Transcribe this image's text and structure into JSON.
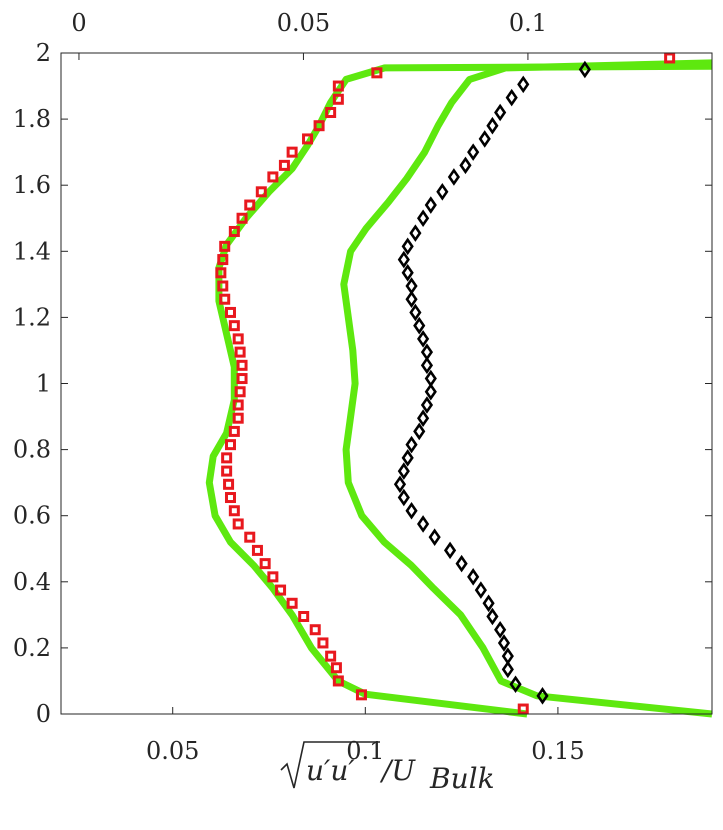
{
  "chart_data": {
    "type": "scatter",
    "title": "",
    "xlabel": "√(u′u′)/U_Bulk",
    "xlabel_parts": {
      "main": "u′u′",
      "tail": "/U",
      "sub": "Bulk"
    },
    "ylabel": "",
    "xlim": [
      0.021,
      0.19
    ],
    "ylim": [
      0,
      2
    ],
    "x_ticks": [
      0.05,
      0.1,
      0.15
    ],
    "x_tick_labels": [
      "0.05",
      "0.1",
      "0.15"
    ],
    "x_top_lim": [
      -0.004,
      0.141
    ],
    "x_top_ticks": [
      0,
      0.05,
      0.1
    ],
    "x_top_tick_labels": [
      "0",
      "0.05",
      "0.1"
    ],
    "y_ticks": [
      0,
      0.2,
      0.4,
      0.6,
      0.8,
      1,
      1.2,
      1.4,
      1.6,
      1.8,
      2
    ],
    "y_tick_labels": [
      "0",
      "0.2",
      "0.4",
      "0.6",
      "0.8",
      "1",
      "1.2",
      "1.4",
      "1.6",
      "1.8",
      "2"
    ],
    "grid": false,
    "lines": [
      {
        "axis": "bottom",
        "color": "#5ee80f",
        "points": [
          [
            0.142,
            0.0
          ],
          [
            0.1,
            0.06
          ],
          [
            0.093,
            0.1
          ],
          [
            0.086,
            0.2
          ],
          [
            0.081,
            0.3
          ],
          [
            0.076,
            0.38
          ],
          [
            0.071,
            0.45
          ],
          [
            0.065,
            0.52
          ],
          [
            0.061,
            0.6
          ],
          [
            0.0595,
            0.7
          ],
          [
            0.0605,
            0.78
          ],
          [
            0.064,
            0.85
          ],
          [
            0.066,
            0.95
          ],
          [
            0.066,
            1.05
          ],
          [
            0.064,
            1.15
          ],
          [
            0.062,
            1.25
          ],
          [
            0.062,
            1.35
          ],
          [
            0.064,
            1.42
          ],
          [
            0.069,
            1.5
          ],
          [
            0.075,
            1.58
          ],
          [
            0.081,
            1.65
          ],
          [
            0.085,
            1.72
          ],
          [
            0.088,
            1.78
          ],
          [
            0.091,
            1.85
          ],
          [
            0.095,
            1.92
          ],
          [
            0.105,
            1.955
          ],
          [
            0.19,
            1.96
          ]
        ]
      },
      {
        "axis": "top",
        "color": "#5ee80f",
        "points": [
          [
            0.141,
            0.0
          ],
          [
            0.102,
            0.055
          ],
          [
            0.094,
            0.1
          ],
          [
            0.09,
            0.2
          ],
          [
            0.085,
            0.3
          ],
          [
            0.079,
            0.38
          ],
          [
            0.074,
            0.45
          ],
          [
            0.068,
            0.52
          ],
          [
            0.063,
            0.6
          ],
          [
            0.06,
            0.7
          ],
          [
            0.0595,
            0.8
          ],
          [
            0.0605,
            0.9
          ],
          [
            0.0615,
            1.0
          ],
          [
            0.061,
            1.1
          ],
          [
            0.06,
            1.2
          ],
          [
            0.059,
            1.3
          ],
          [
            0.0605,
            1.4
          ],
          [
            0.064,
            1.47
          ],
          [
            0.069,
            1.55
          ],
          [
            0.073,
            1.62
          ],
          [
            0.077,
            1.7
          ],
          [
            0.08,
            1.78
          ],
          [
            0.083,
            1.85
          ],
          [
            0.087,
            1.92
          ],
          [
            0.095,
            1.955
          ],
          [
            0.141,
            1.97
          ]
        ]
      }
    ],
    "series": [
      {
        "marker": "square",
        "axis": "bottom",
        "color": "#e8181e",
        "points": [
          [
            0.141,
            0.015
          ],
          [
            0.099,
            0.058
          ],
          [
            0.093,
            0.1
          ],
          [
            0.0925,
            0.14
          ],
          [
            0.091,
            0.175
          ],
          [
            0.089,
            0.215
          ],
          [
            0.087,
            0.255
          ],
          [
            0.084,
            0.295
          ],
          [
            0.081,
            0.335
          ],
          [
            0.078,
            0.375
          ],
          [
            0.076,
            0.415
          ],
          [
            0.074,
            0.455
          ],
          [
            0.072,
            0.495
          ],
          [
            0.07,
            0.535
          ],
          [
            0.067,
            0.575
          ],
          [
            0.066,
            0.615
          ],
          [
            0.065,
            0.655
          ],
          [
            0.0645,
            0.695
          ],
          [
            0.064,
            0.735
          ],
          [
            0.064,
            0.775
          ],
          [
            0.065,
            0.815
          ],
          [
            0.066,
            0.855
          ],
          [
            0.067,
            0.895
          ],
          [
            0.067,
            0.935
          ],
          [
            0.0675,
            0.975
          ],
          [
            0.068,
            1.015
          ],
          [
            0.068,
            1.055
          ],
          [
            0.0675,
            1.095
          ],
          [
            0.067,
            1.135
          ],
          [
            0.066,
            1.175
          ],
          [
            0.065,
            1.215
          ],
          [
            0.0635,
            1.255
          ],
          [
            0.063,
            1.295
          ],
          [
            0.0625,
            1.335
          ],
          [
            0.063,
            1.375
          ],
          [
            0.0635,
            1.415
          ],
          [
            0.066,
            1.46
          ],
          [
            0.068,
            1.5
          ],
          [
            0.07,
            1.54
          ],
          [
            0.073,
            1.58
          ],
          [
            0.076,
            1.625
          ],
          [
            0.079,
            1.66
          ],
          [
            0.081,
            1.7
          ],
          [
            0.085,
            1.74
          ],
          [
            0.088,
            1.78
          ],
          [
            0.091,
            1.82
          ],
          [
            0.093,
            1.86
          ],
          [
            0.093,
            1.9
          ],
          [
            0.103,
            1.94
          ],
          [
            0.179,
            1.985
          ]
        ]
      },
      {
        "marker": "diamond",
        "axis": "bottom",
        "color": "#000000",
        "points": [
          [
            0.146,
            0.055
          ],
          [
            0.139,
            0.09
          ],
          [
            0.137,
            0.135
          ],
          [
            0.137,
            0.175
          ],
          [
            0.136,
            0.215
          ],
          [
            0.135,
            0.255
          ],
          [
            0.133,
            0.295
          ],
          [
            0.132,
            0.335
          ],
          [
            0.13,
            0.375
          ],
          [
            0.128,
            0.415
          ],
          [
            0.125,
            0.455
          ],
          [
            0.122,
            0.495
          ],
          [
            0.118,
            0.535
          ],
          [
            0.115,
            0.575
          ],
          [
            0.112,
            0.615
          ],
          [
            0.11,
            0.655
          ],
          [
            0.109,
            0.695
          ],
          [
            0.11,
            0.735
          ],
          [
            0.111,
            0.775
          ],
          [
            0.112,
            0.815
          ],
          [
            0.114,
            0.855
          ],
          [
            0.115,
            0.895
          ],
          [
            0.116,
            0.935
          ],
          [
            0.117,
            0.975
          ],
          [
            0.117,
            1.015
          ],
          [
            0.116,
            1.055
          ],
          [
            0.116,
            1.095
          ],
          [
            0.115,
            1.135
          ],
          [
            0.114,
            1.175
          ],
          [
            0.113,
            1.215
          ],
          [
            0.112,
            1.255
          ],
          [
            0.112,
            1.295
          ],
          [
            0.111,
            1.335
          ],
          [
            0.11,
            1.375
          ],
          [
            0.111,
            1.415
          ],
          [
            0.113,
            1.455
          ],
          [
            0.115,
            1.5
          ],
          [
            0.117,
            1.54
          ],
          [
            0.12,
            1.58
          ],
          [
            0.123,
            1.625
          ],
          [
            0.126,
            1.66
          ],
          [
            0.128,
            1.7
          ],
          [
            0.131,
            1.74
          ],
          [
            0.133,
            1.78
          ],
          [
            0.135,
            1.82
          ],
          [
            0.138,
            1.865
          ],
          [
            0.141,
            1.905
          ],
          [
            0.157,
            1.95
          ]
        ]
      }
    ]
  }
}
